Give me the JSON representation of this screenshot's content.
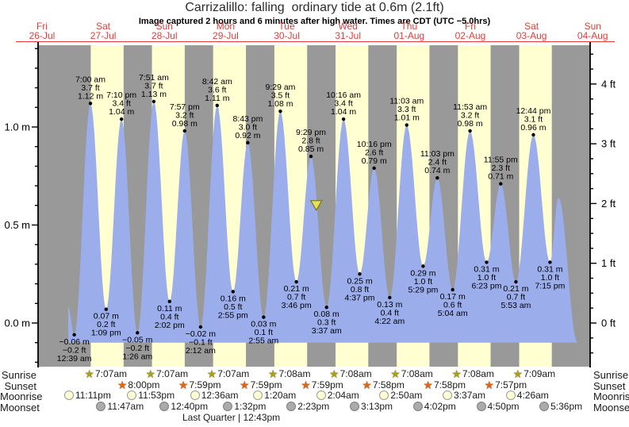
{
  "title": "Carrizalillo: falling  ordinary tide at 0.6m (2.1ft)",
  "subtitle": "Image captured 2 hours and 6 minutes after high water. Times are CDT (UTC −5.0hrs)",
  "top_axis": {
    "days": [
      {
        "dow": "Fri",
        "date": "26-Jul"
      },
      {
        "dow": "Sat",
        "date": "27-Jul"
      },
      {
        "dow": "Sun",
        "date": "28-Jul"
      },
      {
        "dow": "Mon",
        "date": "29-Jul"
      },
      {
        "dow": "Tue",
        "date": "30-Jul"
      },
      {
        "dow": "Wed",
        "date": "31-Jul"
      },
      {
        "dow": "Thu",
        "date": "01-Aug"
      },
      {
        "dow": "Fri",
        "date": "02-Aug"
      },
      {
        "dow": "Sat",
        "date": "03-Aug"
      },
      {
        "dow": "Sun",
        "date": "04-Aug"
      }
    ]
  },
  "left_axis": {
    "unit": "m",
    "ticks": [
      {
        "value": 1.0,
        "label": "1.0 m"
      },
      {
        "value": 0.5,
        "label": "0.5 m"
      },
      {
        "value": 0.0,
        "label": "0.0 m"
      }
    ]
  },
  "right_axis": {
    "unit": "ft",
    "ticks": [
      {
        "value": 4,
        "label": "4 ft"
      },
      {
        "value": 3,
        "label": "3 ft"
      },
      {
        "value": 2,
        "label": "2 ft"
      },
      {
        "value": 1,
        "label": "1 ft"
      },
      {
        "value": 0,
        "label": "0 ft"
      }
    ]
  },
  "chart_data": {
    "type": "area",
    "title": "Carrizalillo tide heights, Fri 26-Jul to Sun 04-Aug",
    "ylabel_left": "metres",
    "ylabel_right": "feet",
    "ylim_m": [
      -0.22,
      1.39
    ],
    "extremes": [
      {
        "day": 1,
        "t": "00:39",
        "time": "12:39 am",
        "ft": "−0.2 ft",
        "m": "−0.06 m",
        "h": -0.06,
        "kind": "low"
      },
      {
        "day": 1,
        "t": "07:00",
        "time": "7:00 am",
        "ft": "3.7 ft",
        "m": "1.12 m",
        "h": 1.12,
        "kind": "high"
      },
      {
        "day": 1,
        "t": "13:09",
        "time": "1:09 pm",
        "ft": "0.2 ft",
        "m": "0.07 m",
        "h": 0.07,
        "kind": "low"
      },
      {
        "day": 1,
        "t": "19:10",
        "time": "7:10 pm",
        "ft": "3.4 ft",
        "m": "1.04 m",
        "h": 1.04,
        "kind": "high"
      },
      {
        "day": 2,
        "t": "01:26",
        "time": "1:26 am",
        "ft": "−0.2 ft",
        "m": "−0.05 m",
        "h": -0.05,
        "kind": "low"
      },
      {
        "day": 2,
        "t": "07:51",
        "time": "7:51 am",
        "ft": "3.7 ft",
        "m": "1.13 m",
        "h": 1.13,
        "kind": "high"
      },
      {
        "day": 2,
        "t": "14:02",
        "time": "2:02 pm",
        "ft": "0.4 ft",
        "m": "0.11 m",
        "h": 0.11,
        "kind": "low"
      },
      {
        "day": 2,
        "t": "19:57",
        "time": "7:57 pm",
        "ft": "3.2 ft",
        "m": "0.98 m",
        "h": 0.98,
        "kind": "high"
      },
      {
        "day": 3,
        "t": "02:12",
        "time": "2:12 am",
        "ft": "−0.1 ft",
        "m": "−0.02 m",
        "h": -0.02,
        "kind": "low"
      },
      {
        "day": 3,
        "t": "08:42",
        "time": "8:42 am",
        "ft": "3.6 ft",
        "m": "1.11 m",
        "h": 1.11,
        "kind": "high"
      },
      {
        "day": 3,
        "t": "14:55",
        "time": "2:55 pm",
        "ft": "0.5 ft",
        "m": "0.16 m",
        "h": 0.16,
        "kind": "low"
      },
      {
        "day": 3,
        "t": "20:43",
        "time": "8:43 pm",
        "ft": "3.0 ft",
        "m": "0.92 m",
        "h": 0.92,
        "kind": "high"
      },
      {
        "day": 4,
        "t": "02:55",
        "time": "2:55 am",
        "ft": "0.1 ft",
        "m": "0.03 m",
        "h": 0.03,
        "kind": "low"
      },
      {
        "day": 4,
        "t": "09:29",
        "time": "9:29 am",
        "ft": "3.5 ft",
        "m": "1.08 m",
        "h": 1.08,
        "kind": "high"
      },
      {
        "day": 4,
        "t": "15:46",
        "time": "3:46 pm",
        "ft": "0.7 ft",
        "m": "0.21 m",
        "h": 0.21,
        "kind": "low"
      },
      {
        "day": 4,
        "t": "21:29",
        "time": "9:29 pm",
        "ft": "2.8 ft",
        "m": "0.85 m",
        "h": 0.85,
        "kind": "high"
      },
      {
        "day": 5,
        "t": "03:37",
        "time": "3:37 am",
        "ft": "0.3 ft",
        "m": "0.08 m",
        "h": 0.08,
        "kind": "low"
      },
      {
        "day": 5,
        "t": "10:16",
        "time": "10:16 am",
        "ft": "3.4 ft",
        "m": "1.04 m",
        "h": 1.04,
        "kind": "high"
      },
      {
        "day": 5,
        "t": "16:37",
        "time": "4:37 pm",
        "ft": "0.8 ft",
        "m": "0.25 m",
        "h": 0.25,
        "kind": "low"
      },
      {
        "day": 5,
        "t": "22:16",
        "time": "10:16 pm",
        "ft": "2.6 ft",
        "m": "0.79 m",
        "h": 0.79,
        "kind": "high"
      },
      {
        "day": 6,
        "t": "04:22",
        "time": "4:22 am",
        "ft": "0.4 ft",
        "m": "0.13 m",
        "h": 0.13,
        "kind": "low"
      },
      {
        "day": 6,
        "t": "11:03",
        "time": "11:03 am",
        "ft": "3.3 ft",
        "m": "1.01 m",
        "h": 1.01,
        "kind": "high"
      },
      {
        "day": 6,
        "t": "17:29",
        "time": "5:29 pm",
        "ft": "1.0 ft",
        "m": "0.29 m",
        "h": 0.29,
        "kind": "low"
      },
      {
        "day": 6,
        "t": "23:03",
        "time": "11:03 pm",
        "ft": "2.4 ft",
        "m": "0.74 m",
        "h": 0.74,
        "kind": "high"
      },
      {
        "day": 7,
        "t": "05:04",
        "time": "5:04 am",
        "ft": "0.6 ft",
        "m": "0.17 m",
        "h": 0.17,
        "kind": "low"
      },
      {
        "day": 7,
        "t": "11:53",
        "time": "11:53 am",
        "ft": "3.2 ft",
        "m": "0.98 m",
        "h": 0.98,
        "kind": "high"
      },
      {
        "day": 7,
        "t": "18:23",
        "time": "6:23 pm",
        "ft": "1.0 ft",
        "m": "0.31 m",
        "h": 0.31,
        "kind": "low"
      },
      {
        "day": 7,
        "t": "23:55",
        "time": "11:55 pm",
        "ft": "2.3 ft",
        "m": "0.71 m",
        "h": 0.71,
        "kind": "high"
      },
      {
        "day": 8,
        "t": "05:53",
        "time": "5:53 am",
        "ft": "0.7 ft",
        "m": "0.21 m",
        "h": 0.21,
        "kind": "low"
      },
      {
        "day": 8,
        "t": "12:44",
        "time": "12:44 pm",
        "ft": "3.1 ft",
        "m": "0.96 m",
        "h": 0.96,
        "kind": "high"
      },
      {
        "day": 8,
        "t": "19:15",
        "time": "7:15 pm",
        "ft": "1.0 ft",
        "m": "0.31 m",
        "h": 0.31,
        "kind": "low"
      }
    ],
    "curve_edge_start": {
      "day": 0,
      "t": "22:16",
      "h": 0.08
    },
    "curve_edge_end": [
      {
        "day": 8,
        "t": "22:34",
        "h": 0.64
      },
      {
        "day": 9,
        "t": "06:00",
        "h": -0.1
      }
    ],
    "current_marker": {
      "day": 4,
      "t": "23:35",
      "height_m": 0.6
    }
  },
  "sun_moon": {
    "rows": [
      {
        "id": "sunrise",
        "label": "Sunrise",
        "icon": "sunrise-star",
        "entries": [
          {
            "day": 1,
            "t": "07:07",
            "text": "7:07am"
          },
          {
            "day": 2,
            "t": "07:07",
            "text": "7:07am"
          },
          {
            "day": 3,
            "t": "07:07",
            "text": "7:07am"
          },
          {
            "day": 4,
            "t": "07:08",
            "text": "7:08am"
          },
          {
            "day": 5,
            "t": "07:08",
            "text": "7:08am"
          },
          {
            "day": 6,
            "t": "07:08",
            "text": "7:08am"
          },
          {
            "day": 7,
            "t": "07:08",
            "text": "7:08am"
          },
          {
            "day": 8,
            "t": "07:09",
            "text": "7:09am"
          }
        ]
      },
      {
        "id": "sunset",
        "label": "Sunset",
        "icon": "sunset-star",
        "entries": [
          {
            "day": 1,
            "t": "20:00",
            "text": "8:00pm"
          },
          {
            "day": 2,
            "t": "19:59",
            "text": "7:59pm"
          },
          {
            "day": 3,
            "t": "19:59",
            "text": "7:59pm"
          },
          {
            "day": 4,
            "t": "19:59",
            "text": "7:59pm"
          },
          {
            "day": 5,
            "t": "19:58",
            "text": "7:58pm"
          },
          {
            "day": 6,
            "t": "19:58",
            "text": "7:58pm"
          },
          {
            "day": 7,
            "t": "19:57",
            "text": "7:57pm"
          }
        ]
      },
      {
        "id": "moonrise",
        "label": "Moonrise",
        "icon": "moonrise-circle",
        "entries": [
          {
            "day": 0,
            "t": "23:11",
            "text": "11:11pm"
          },
          {
            "day": 1,
            "t": "23:53",
            "text": "11:53pm"
          },
          {
            "day": 3,
            "t": "00:36",
            "text": "12:36am"
          },
          {
            "day": 4,
            "t": "01:20",
            "text": "1:20am"
          },
          {
            "day": 5,
            "t": "02:04",
            "text": "2:04am"
          },
          {
            "day": 6,
            "t": "02:50",
            "text": "2:50am"
          },
          {
            "day": 7,
            "t": "03:37",
            "text": "3:37am"
          },
          {
            "day": 8,
            "t": "04:26",
            "text": "4:26am"
          }
        ]
      },
      {
        "id": "moonset",
        "label": "Moonset",
        "icon": "moonset-circle",
        "entries": [
          {
            "day": 1,
            "t": "11:47",
            "text": "11:47am"
          },
          {
            "day": 2,
            "t": "12:40",
            "text": "12:40pm"
          },
          {
            "day": 3,
            "t": "13:32",
            "text": "1:32pm"
          },
          {
            "day": 4,
            "t": "14:23",
            "text": "2:23pm"
          },
          {
            "day": 5,
            "t": "15:13",
            "text": "3:13pm"
          },
          {
            "day": 6,
            "t": "16:02",
            "text": "4:02pm"
          },
          {
            "day": 7,
            "t": "16:50",
            "text": "4:50pm"
          },
          {
            "day": 8,
            "t": "17:36",
            "text": "5:36pm"
          }
        ]
      }
    ],
    "moon_phase": "Last Quarter | 12:43pm"
  },
  "colors": {
    "tide_fill": "#9badea",
    "day_band": "#ffffd2",
    "night_band": "#999999",
    "axis": "#000000",
    "date_red": "#e43b3b",
    "marker_fill": "#e8df5e",
    "marker_stroke": "#77770e",
    "sunrise_star": "#a8a018",
    "sunset_star": "#e06616",
    "moonrise_fill": "#ffffd2",
    "moonrise_border": "#9a9a9a",
    "moonset_fill": "#ababab",
    "moonset_border": "#7d7d7d"
  }
}
